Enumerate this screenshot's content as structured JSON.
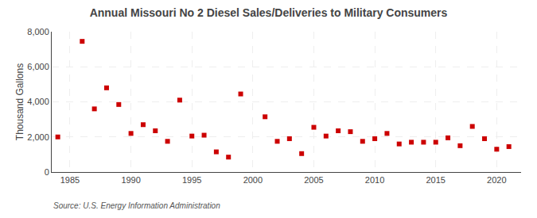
{
  "chart_data": {
    "type": "scatter",
    "title": "Annual Missouri No 2 Diesel Sales/Deliveries to Military Consumers",
    "ylabel": "Thousand Gallons",
    "source": "Source: U.S. Energy Information Administration",
    "x": [
      1984,
      1986,
      1987,
      1988,
      1989,
      1990,
      1991,
      1992,
      1993,
      1994,
      1995,
      1996,
      1997,
      1998,
      1999,
      2001,
      2002,
      2003,
      2004,
      2005,
      2006,
      2007,
      2008,
      2009,
      2010,
      2011,
      2012,
      2013,
      2014,
      2015,
      2016,
      2017,
      2018,
      2019,
      2020,
      2021
    ],
    "values": [
      2000,
      7450,
      3600,
      4800,
      3850,
      2200,
      2700,
      2350,
      1750,
      4100,
      2050,
      2100,
      1150,
      850,
      4450,
      3150,
      1750,
      1900,
      1050,
      2550,
      2050,
      2350,
      2300,
      1750,
      1900,
      2200,
      1600,
      1700,
      1700,
      1700,
      1950,
      1500,
      2600,
      1900,
      1300,
      1450
    ],
    "color": "#cc0000",
    "marker": "square",
    "xlim": [
      1983.5,
      2022
    ],
    "xticks": [
      1985,
      1990,
      1995,
      2000,
      2005,
      2010,
      2015,
      2020
    ],
    "ylim": [
      0,
      8000
    ],
    "yticks": [
      0,
      {
        "value": 2000,
        "label": "2,000"
      },
      {
        "value": 4000,
        "label": "4,000"
      },
      {
        "value": 6000,
        "label": "6,000"
      },
      {
        "value": 8000,
        "label": "8,000"
      }
    ],
    "grid": true
  }
}
